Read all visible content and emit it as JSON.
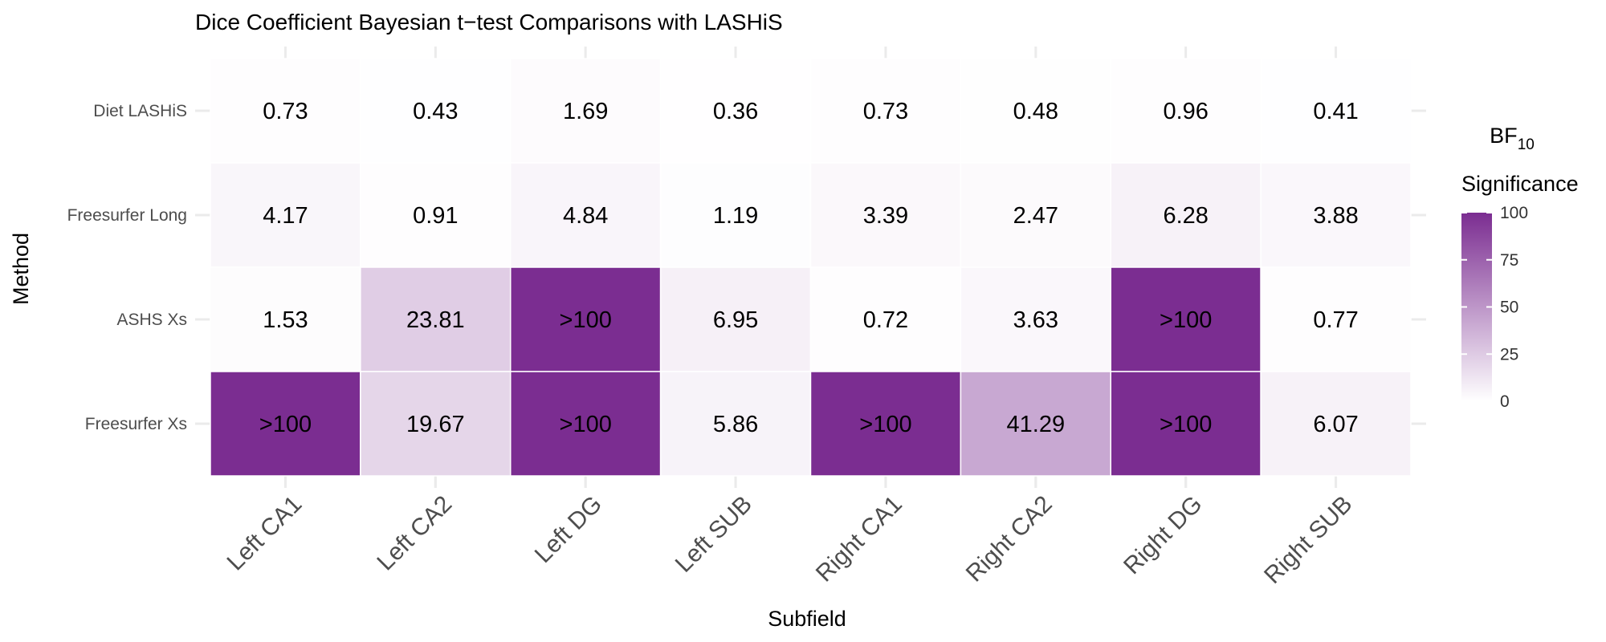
{
  "chart_data": {
    "type": "heatmap",
    "title": "Dice Coefficient Bayesian t−test Comparisons with LASHiS",
    "xlabel": "Subfield",
    "ylabel": "Method",
    "x_categories": [
      "Left CA1",
      "Left CA2",
      "Left DG",
      "Left SUB",
      "Right CA1",
      "Right CA2",
      "Right DG",
      "Right SUB"
    ],
    "y_categories": [
      "Diet LASHiS",
      "Freesurfer Long",
      "ASHS Xs",
      "Freesurfer Xs"
    ],
    "cells": [
      {
        "y": "Diet LASHiS",
        "x": "Left CA1",
        "value": 0.73,
        "label": "0.73"
      },
      {
        "y": "Diet LASHiS",
        "x": "Left CA2",
        "value": 0.43,
        "label": "0.43"
      },
      {
        "y": "Diet LASHiS",
        "x": "Left DG",
        "value": 1.69,
        "label": "1.69"
      },
      {
        "y": "Diet LASHiS",
        "x": "Left SUB",
        "value": 0.36,
        "label": "0.36"
      },
      {
        "y": "Diet LASHiS",
        "x": "Right CA1",
        "value": 0.73,
        "label": "0.73"
      },
      {
        "y": "Diet LASHiS",
        "x": "Right CA2",
        "value": 0.48,
        "label": "0.48"
      },
      {
        "y": "Diet LASHiS",
        "x": "Right DG",
        "value": 0.96,
        "label": "0.96"
      },
      {
        "y": "Diet LASHiS",
        "x": "Right SUB",
        "value": 0.41,
        "label": "0.41"
      },
      {
        "y": "Freesurfer Long",
        "x": "Left CA1",
        "value": 4.17,
        "label": "4.17"
      },
      {
        "y": "Freesurfer Long",
        "x": "Left CA2",
        "value": 0.91,
        "label": "0.91"
      },
      {
        "y": "Freesurfer Long",
        "x": "Left DG",
        "value": 4.84,
        "label": "4.84"
      },
      {
        "y": "Freesurfer Long",
        "x": "Left SUB",
        "value": 1.19,
        "label": "1.19"
      },
      {
        "y": "Freesurfer Long",
        "x": "Right CA1",
        "value": 3.39,
        "label": "3.39"
      },
      {
        "y": "Freesurfer Long",
        "x": "Right CA2",
        "value": 2.47,
        "label": "2.47"
      },
      {
        "y": "Freesurfer Long",
        "x": "Right DG",
        "value": 6.28,
        "label": "6.28"
      },
      {
        "y": "Freesurfer Long",
        "x": "Right SUB",
        "value": 3.88,
        "label": "3.88"
      },
      {
        "y": "ASHS Xs",
        "x": "Left CA1",
        "value": 1.53,
        "label": "1.53"
      },
      {
        "y": "ASHS Xs",
        "x": "Left CA2",
        "value": 23.81,
        "label": "23.81"
      },
      {
        "y": "ASHS Xs",
        "x": "Left DG",
        "value": 100,
        "label": ">100"
      },
      {
        "y": "ASHS Xs",
        "x": "Left SUB",
        "value": 6.95,
        "label": "6.95"
      },
      {
        "y": "ASHS Xs",
        "x": "Right CA1",
        "value": 0.72,
        "label": "0.72"
      },
      {
        "y": "ASHS Xs",
        "x": "Right CA2",
        "value": 3.63,
        "label": "3.63"
      },
      {
        "y": "ASHS Xs",
        "x": "Right DG",
        "value": 100,
        "label": ">100"
      },
      {
        "y": "ASHS Xs",
        "x": "Right SUB",
        "value": 0.77,
        "label": "0.77"
      },
      {
        "y": "Freesurfer Xs",
        "x": "Left CA1",
        "value": 100,
        "label": ">100"
      },
      {
        "y": "Freesurfer Xs",
        "x": "Left CA2",
        "value": 19.67,
        "label": "19.67"
      },
      {
        "y": "Freesurfer Xs",
        "x": "Left DG",
        "value": 100,
        "label": ">100"
      },
      {
        "y": "Freesurfer Xs",
        "x": "Left SUB",
        "value": 5.86,
        "label": "5.86"
      },
      {
        "y": "Freesurfer Xs",
        "x": "Right CA1",
        "value": 100,
        "label": ">100"
      },
      {
        "y": "Freesurfer Xs",
        "x": "Right CA2",
        "value": 41.29,
        "label": "41.29"
      },
      {
        "y": "Freesurfer Xs",
        "x": "Right DG",
        "value": 100,
        "label": ">100"
      },
      {
        "y": "Freesurfer Xs",
        "x": "Right SUB",
        "value": 6.07,
        "label": "6.07"
      }
    ],
    "legend": {
      "title_main": "BF",
      "title_sub": "10",
      "title_line2": "Significance",
      "ticks": [
        0,
        25,
        50,
        75,
        100
      ],
      "range": [
        0,
        100
      ],
      "low_color": "#ffffff",
      "high_color": "#7b2d91",
      "placement": "right"
    },
    "grid": true
  }
}
